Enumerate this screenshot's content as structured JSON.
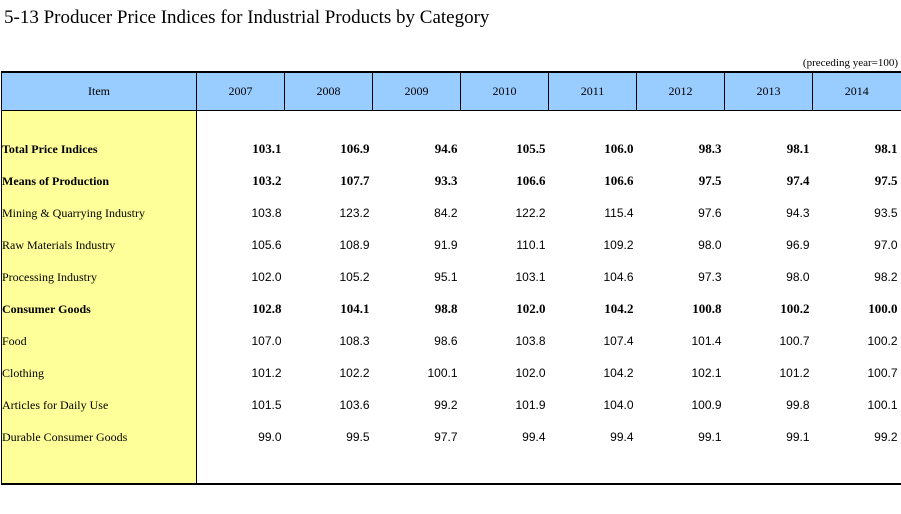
{
  "title": "5-13  Producer Price Indices for Industrial Products by Category",
  "unit_note": "(preceding year=100)",
  "colors": {
    "header_bg": "#99ccff",
    "item_column_bg": "#ffff99"
  },
  "table": {
    "item_header": "Item",
    "years": [
      "2007",
      "2008",
      "2009",
      "2010",
      "2011",
      "2012",
      "2013",
      "2014"
    ],
    "rows": [
      {
        "label": "Total Price Indices",
        "level": 0,
        "bold": true,
        "values": [
          "103.1",
          "106.9",
          "94.6",
          "105.5",
          "106.0",
          "98.3",
          "98.1",
          "98.1"
        ]
      },
      {
        "label": "Means of Production",
        "level": 1,
        "bold": true,
        "values": [
          "103.2",
          "107.7",
          "93.3",
          "106.6",
          "106.6",
          "97.5",
          "97.4",
          "97.5"
        ]
      },
      {
        "label": "Mining & Quarrying Industry",
        "level": 2,
        "bold": false,
        "values": [
          "103.8",
          "123.2",
          "84.2",
          "122.2",
          "115.4",
          "97.6",
          "94.3",
          "93.5"
        ]
      },
      {
        "label": "Raw Materials Industry",
        "level": 2,
        "bold": false,
        "values": [
          "105.6",
          "108.9",
          "91.9",
          "110.1",
          "109.2",
          "98.0",
          "96.9",
          "97.0"
        ]
      },
      {
        "label": "Processing Industry",
        "level": 2,
        "bold": false,
        "values": [
          "102.0",
          "105.2",
          "95.1",
          "103.1",
          "104.6",
          "97.3",
          "98.0",
          "98.2"
        ]
      },
      {
        "label": "Consumer Goods",
        "level": 1,
        "bold": true,
        "values": [
          "102.8",
          "104.1",
          "98.8",
          "102.0",
          "104.2",
          "100.8",
          "100.2",
          "100.0"
        ]
      },
      {
        "label": "Food",
        "level": 2,
        "bold": false,
        "values": [
          "107.0",
          "108.3",
          "98.6",
          "103.8",
          "107.4",
          "101.4",
          "100.7",
          "100.2"
        ]
      },
      {
        "label": "Clothing",
        "level": 2,
        "bold": false,
        "values": [
          "101.2",
          "102.2",
          "100.1",
          "102.0",
          "104.2",
          "102.1",
          "101.2",
          "100.7"
        ]
      },
      {
        "label": "Articles for Daily Use",
        "level": 2,
        "bold": false,
        "values": [
          "101.5",
          "103.6",
          "99.2",
          "101.9",
          "104.0",
          "100.9",
          "99.8",
          "100.1"
        ]
      },
      {
        "label": "Durable Consumer Goods",
        "level": 2,
        "bold": false,
        "values": [
          "99.0",
          "99.5",
          "97.7",
          "99.4",
          "99.4",
          "99.1",
          "99.1",
          "99.2"
        ]
      }
    ]
  }
}
